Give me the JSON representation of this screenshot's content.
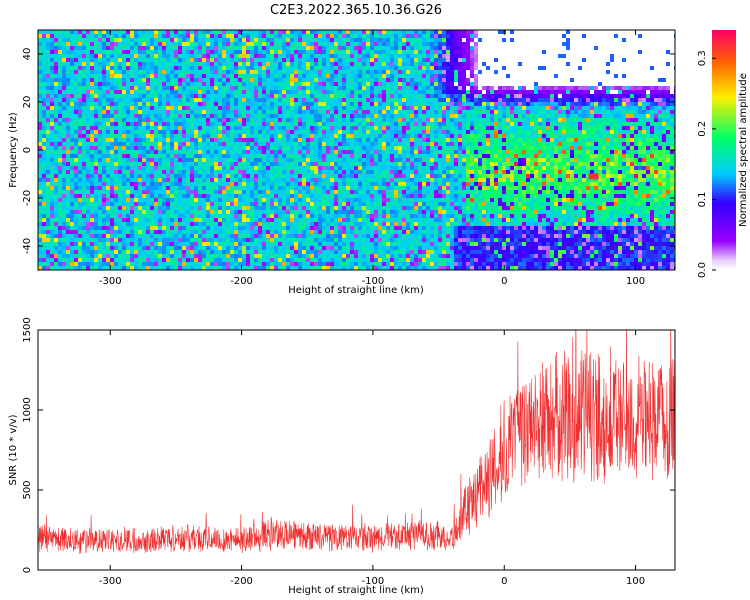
{
  "title": "C2E3.2022.365.10.36.G26",
  "chart_data": [
    {
      "type": "heatmap",
      "xlabel": "Height of straight line (km)",
      "ylabel": "Frequency (Hz)",
      "xlim": [
        -355,
        130
      ],
      "ylim": [
        -50,
        50
      ],
      "xticks": [
        -300,
        -200,
        -100,
        0,
        100
      ],
      "yticks": [
        -40,
        -20,
        0,
        20,
        40
      ],
      "colorbar": {
        "label": "Normalized spectral amplitude",
        "range": [
          0,
          0.34
        ],
        "ticks": [
          0.0,
          0.1,
          0.2,
          0.3
        ],
        "colors": [
          "#ffffff",
          "#9900ff",
          "#3300ff",
          "#00ccff",
          "#00ff66",
          "#ffee00",
          "#ff0066"
        ]
      },
      "peak": {
        "x": 68,
        "y": -11,
        "value": 0.32
      },
      "grid": false
    },
    {
      "type": "line",
      "xlabel": "Height of straight line (km)",
      "ylabel": "SNR (10 * v/v)",
      "xlim": [
        -355,
        130
      ],
      "ylim": [
        0,
        1500
      ],
      "xticks": [
        -300,
        -200,
        -100,
        0,
        100
      ],
      "yticks": [
        0,
        500,
        1000,
        1500
      ],
      "series": [
        {
          "color": "#f03030",
          "x": [
            -355,
            -300,
            -250,
            -200,
            -170,
            -150,
            -100,
            -60,
            -40,
            -30,
            -20,
            -10,
            0,
            10,
            20,
            30,
            40,
            60,
            80,
            100,
            130
          ],
          "y": [
            200,
            180,
            200,
            190,
            230,
            210,
            200,
            220,
            200,
            350,
            500,
            600,
            750,
            820,
            900,
            950,
            950,
            980,
            950,
            920,
            950
          ]
        }
      ],
      "grid": false
    }
  ]
}
